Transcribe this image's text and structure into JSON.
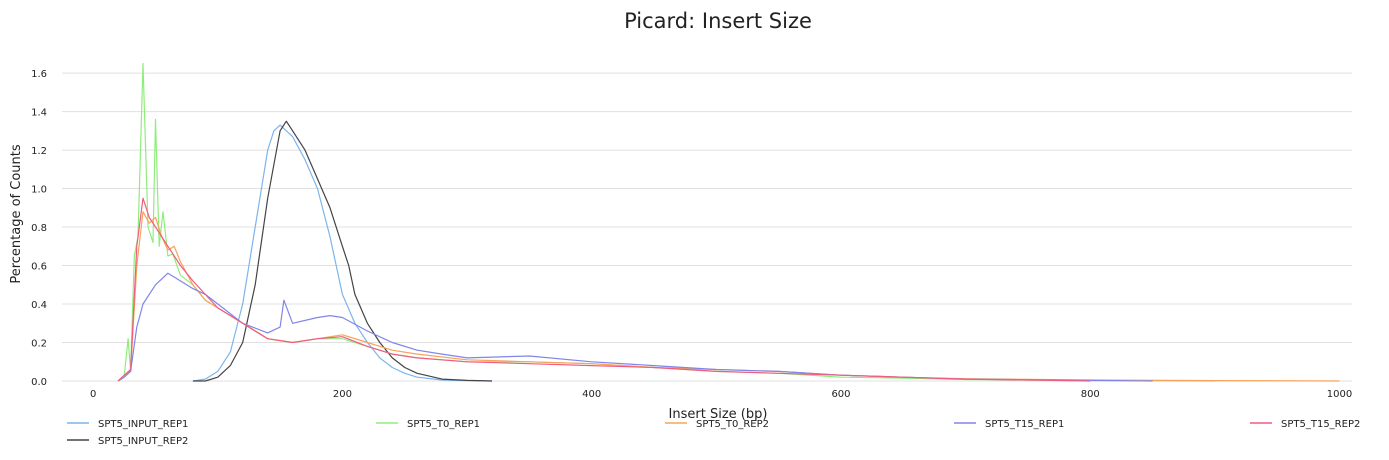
{
  "chart_data": {
    "type": "line",
    "title": "Picard: Insert Size",
    "xlabel": "Insert Size (bp)",
    "ylabel": "Percentage of Counts",
    "xlim": [
      -25,
      1010
    ],
    "ylim": [
      0,
      1.72
    ],
    "xticks": [
      0,
      200,
      400,
      600,
      800,
      1000
    ],
    "yticks": [
      0.0,
      0.2,
      0.4,
      0.6,
      0.8,
      1.0,
      1.2,
      1.4,
      1.6
    ],
    "grid": true,
    "legend_position": "bottom",
    "series": [
      {
        "name": "SPT5_INPUT_REP1",
        "color": "#7cb5ec",
        "x": [
          80,
          90,
          100,
          110,
          120,
          130,
          140,
          145,
          150,
          155,
          160,
          170,
          180,
          190,
          200,
          210,
          220,
          230,
          240,
          250,
          260,
          280,
          300,
          320
        ],
        "y": [
          0.0,
          0.01,
          0.05,
          0.15,
          0.4,
          0.8,
          1.2,
          1.3,
          1.33,
          1.3,
          1.27,
          1.15,
          1.0,
          0.75,
          0.45,
          0.3,
          0.2,
          0.12,
          0.07,
          0.04,
          0.02,
          0.005,
          0.002,
          0.0
        ]
      },
      {
        "name": "SPT5_INPUT_REP2",
        "color": "#434348",
        "x": [
          80,
          90,
          100,
          110,
          120,
          130,
          140,
          150,
          155,
          160,
          170,
          180,
          190,
          200,
          205,
          210,
          220,
          230,
          240,
          250,
          260,
          280,
          300,
          320
        ],
        "y": [
          0.0,
          0.0,
          0.02,
          0.08,
          0.2,
          0.5,
          0.95,
          1.3,
          1.35,
          1.3,
          1.2,
          1.05,
          0.9,
          0.7,
          0.6,
          0.45,
          0.3,
          0.2,
          0.12,
          0.07,
          0.04,
          0.01,
          0.003,
          0.0
        ]
      },
      {
        "name": "SPT5_T0_REP1",
        "color": "#90ed7d",
        "x": [
          20,
          25,
          28,
          30,
          33,
          36,
          40,
          44,
          48,
          50,
          53,
          56,
          60,
          64,
          70,
          80,
          90,
          100,
          120,
          140,
          160,
          180,
          200,
          220,
          240,
          260,
          300,
          350,
          400,
          450,
          500,
          550,
          600,
          650,
          700,
          800,
          900
        ],
        "y": [
          0.0,
          0.03,
          0.22,
          0.05,
          0.65,
          0.75,
          1.65,
          0.8,
          0.72,
          1.36,
          0.7,
          0.88,
          0.65,
          0.66,
          0.55,
          0.5,
          0.42,
          0.38,
          0.3,
          0.22,
          0.2,
          0.22,
          0.22,
          0.18,
          0.14,
          0.12,
          0.1,
          0.1,
          0.09,
          0.07,
          0.05,
          0.04,
          0.02,
          0.015,
          0.008,
          0.002,
          0.0
        ]
      },
      {
        "name": "SPT5_T0_REP2",
        "color": "#f7a35c",
        "x": [
          20,
          25,
          30,
          35,
          40,
          45,
          50,
          55,
          60,
          65,
          70,
          80,
          90,
          100,
          120,
          140,
          160,
          180,
          200,
          220,
          240,
          260,
          300,
          350,
          400,
          450,
          500,
          550,
          600,
          650,
          700,
          800,
          900,
          1000
        ],
        "y": [
          0.0,
          0.03,
          0.05,
          0.6,
          0.88,
          0.82,
          0.85,
          0.75,
          0.68,
          0.7,
          0.62,
          0.5,
          0.42,
          0.38,
          0.3,
          0.22,
          0.2,
          0.22,
          0.24,
          0.2,
          0.16,
          0.14,
          0.11,
          0.1,
          0.09,
          0.07,
          0.06,
          0.05,
          0.03,
          0.02,
          0.012,
          0.005,
          0.002,
          0.0
        ]
      },
      {
        "name": "SPT5_T15_REP1",
        "color": "#8085e9",
        "x": [
          20,
          25,
          30,
          35,
          40,
          50,
          60,
          70,
          80,
          90,
          100,
          120,
          140,
          150,
          153,
          160,
          180,
          190,
          200,
          220,
          240,
          260,
          280,
          300,
          350,
          400,
          450,
          500,
          550,
          600,
          650,
          700,
          800,
          850
        ],
        "y": [
          0.0,
          0.02,
          0.05,
          0.28,
          0.4,
          0.5,
          0.56,
          0.52,
          0.48,
          0.45,
          0.4,
          0.3,
          0.25,
          0.28,
          0.42,
          0.3,
          0.33,
          0.34,
          0.33,
          0.26,
          0.2,
          0.16,
          0.14,
          0.12,
          0.13,
          0.1,
          0.08,
          0.06,
          0.05,
          0.03,
          0.02,
          0.01,
          0.003,
          0.0
        ]
      },
      {
        "name": "SPT5_T15_REP2",
        "color": "#f15c80",
        "x": [
          20,
          25,
          30,
          35,
          40,
          45,
          50,
          55,
          60,
          65,
          70,
          80,
          90,
          100,
          120,
          140,
          160,
          180,
          200,
          220,
          240,
          260,
          300,
          350,
          400,
          450,
          500,
          550,
          600,
          650,
          700,
          750,
          800
        ],
        "y": [
          0.0,
          0.03,
          0.06,
          0.7,
          0.95,
          0.85,
          0.8,
          0.75,
          0.7,
          0.65,
          0.6,
          0.52,
          0.45,
          0.38,
          0.3,
          0.22,
          0.2,
          0.22,
          0.23,
          0.18,
          0.14,
          0.12,
          0.1,
          0.09,
          0.08,
          0.07,
          0.05,
          0.04,
          0.03,
          0.02,
          0.01,
          0.005,
          0.0
        ]
      }
    ]
  }
}
